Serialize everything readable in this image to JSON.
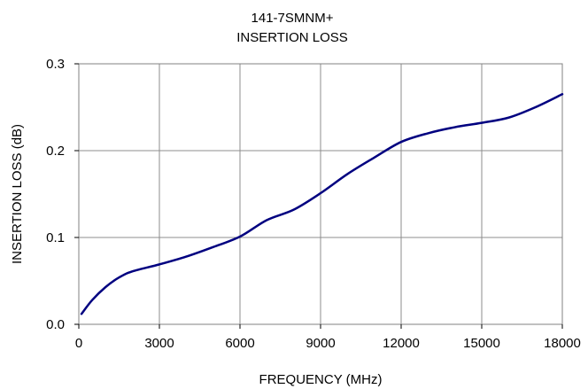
{
  "chart_data": {
    "type": "line",
    "title": "141-7SMNM+",
    "subtitle": "INSERTION LOSS",
    "xlabel": "FREQUENCY (MHz)",
    "ylabel": "INSERTION LOSS (dB)",
    "xlim": [
      0,
      18000
    ],
    "ylim": [
      0.0,
      0.3
    ],
    "x_ticks": [
      0,
      3000,
      6000,
      9000,
      12000,
      15000,
      18000
    ],
    "x_tick_labels": [
      "0",
      "3000",
      "6000",
      "9000",
      "12000",
      "15000",
      "18000"
    ],
    "y_ticks": [
      0.0,
      0.1,
      0.2,
      0.3
    ],
    "y_tick_labels": [
      "0.0",
      "0.1",
      "0.2",
      "0.3"
    ],
    "grid": true,
    "line_color": "#000080",
    "series": [
      {
        "x": [
          100,
          500,
          1000,
          1500,
          2000,
          3000,
          4000,
          5000,
          6000,
          7000,
          8000,
          9000,
          10000,
          11000,
          12000,
          13000,
          14000,
          15000,
          16000,
          17000,
          18000
        ],
        "y": [
          0.012,
          0.028,
          0.043,
          0.054,
          0.061,
          0.069,
          0.078,
          0.089,
          0.101,
          0.12,
          0.132,
          0.151,
          0.173,
          0.192,
          0.21,
          0.22,
          0.227,
          0.232,
          0.238,
          0.25,
          0.265
        ]
      }
    ]
  }
}
